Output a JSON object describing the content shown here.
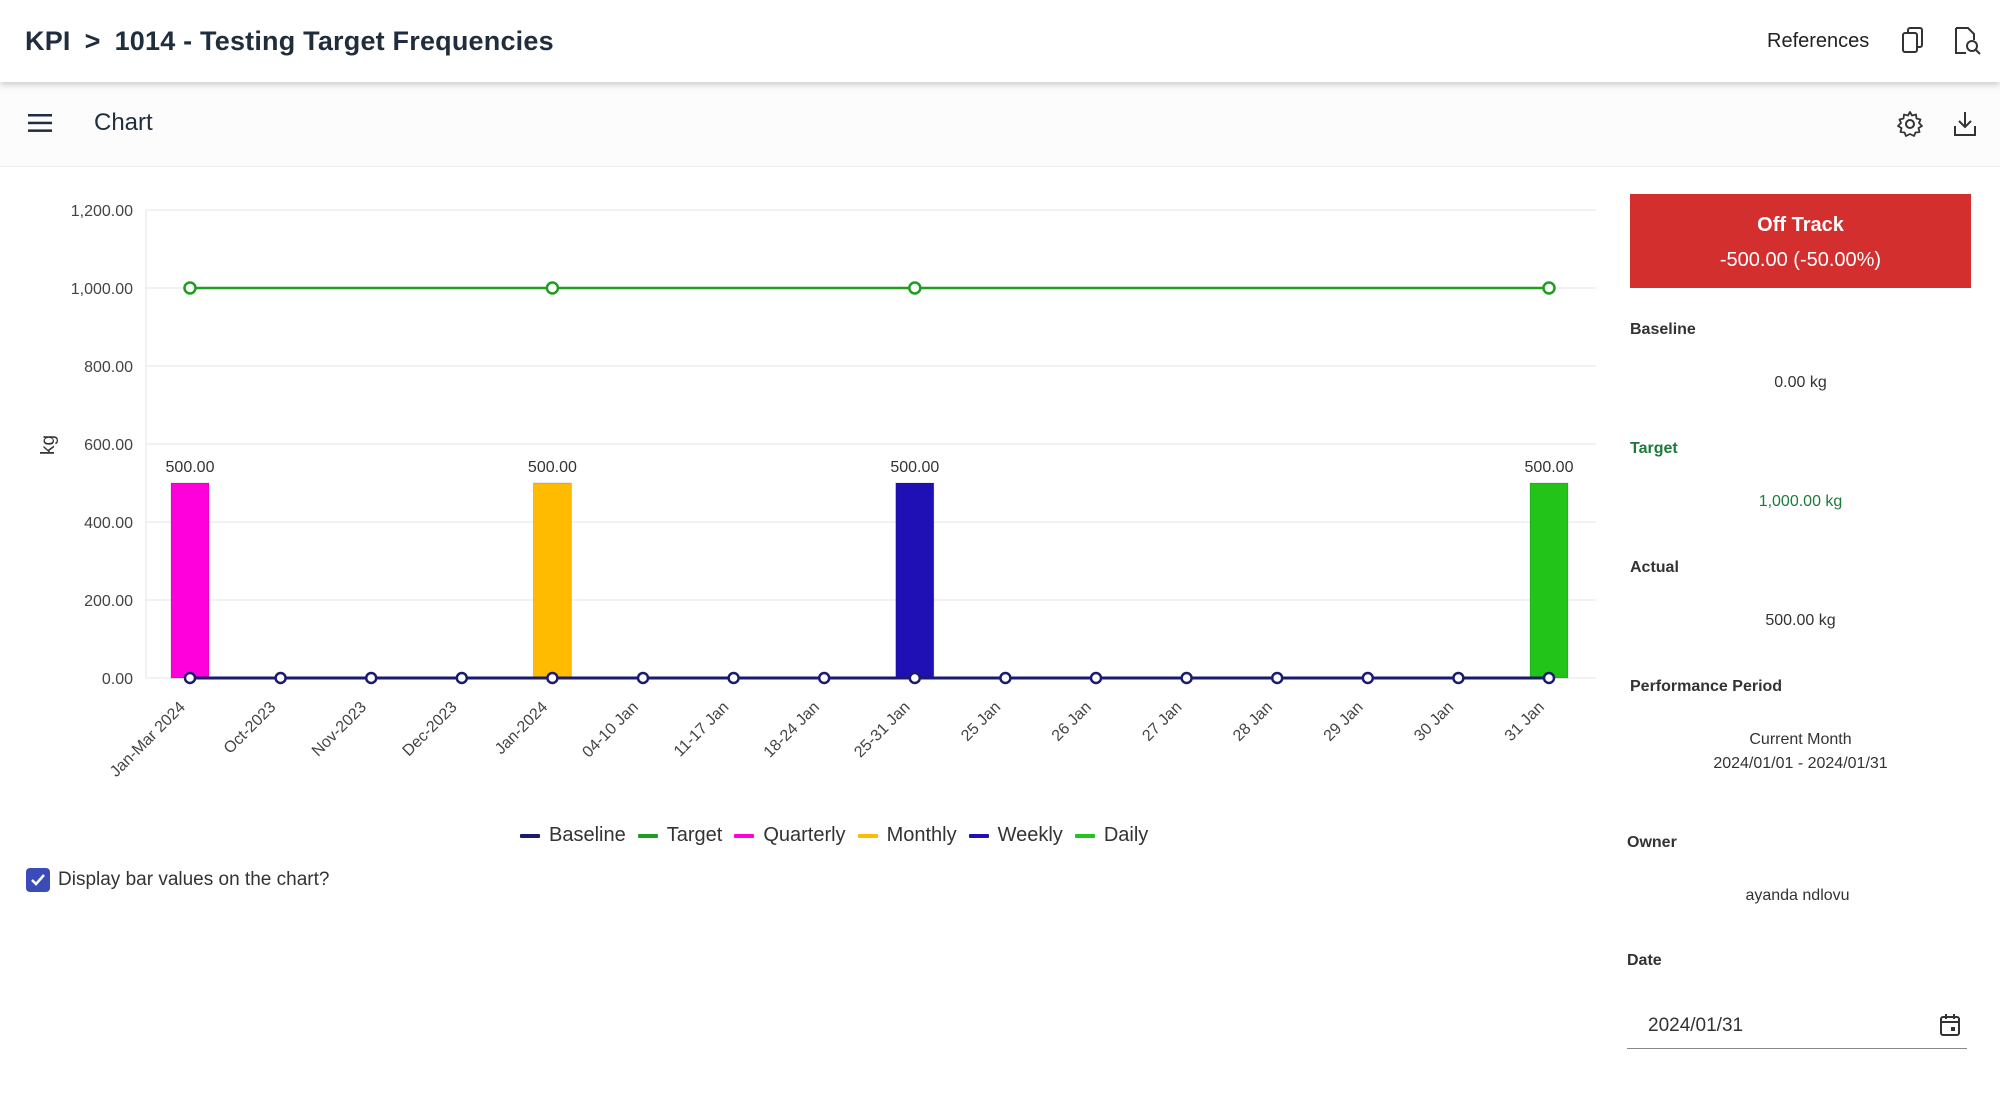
{
  "header": {
    "breadcrumb_root": "KPI",
    "breadcrumb_sep": ">",
    "breadcrumb_title": "1014 - Testing Target Frequencies",
    "references_label": "References",
    "copy_icon": "copy-icon",
    "preview_icon": "document-search-icon"
  },
  "subheader": {
    "menu_icon": "hamburger-menu-icon",
    "title": "Chart",
    "settings_icon": "gear-icon",
    "download_icon": "download-icon"
  },
  "chart_data": {
    "type": "bar",
    "categories": [
      "Jan-Mar 2024",
      "Oct-2023",
      "Nov-2023",
      "Dec-2023",
      "Jan-2024",
      "04-10 Jan",
      "11-17 Jan",
      "18-24 Jan",
      "25-31 Jan",
      "25 Jan",
      "26 Jan",
      "27 Jan",
      "28 Jan",
      "29 Jan",
      "30 Jan",
      "31 Jan"
    ],
    "ylabel": "kg",
    "ylim": [
      0,
      1200
    ],
    "yticks": [
      "0.00",
      "200.00",
      "400.00",
      "600.00",
      "800.00",
      "1,000.00",
      "1,200.00"
    ],
    "grid": true,
    "bars": [
      {
        "series": "Quarterly",
        "category_index": 0,
        "value": 500,
        "label": "500.00"
      },
      {
        "series": "Monthly",
        "category_index": 4,
        "value": 500,
        "label": "500.00"
      },
      {
        "series": "Weekly",
        "category_index": 8,
        "value": 500,
        "label": "500.00"
      },
      {
        "series": "Daily",
        "category_index": 15,
        "value": 500,
        "label": "500.00"
      }
    ],
    "lines": [
      {
        "name": "Baseline",
        "values": [
          0,
          0,
          0,
          0,
          0,
          0,
          0,
          0,
          0,
          0,
          0,
          0,
          0,
          0,
          0,
          0
        ]
      },
      {
        "name": "Target",
        "points": [
          [
            0,
            1000
          ],
          [
            4,
            1000
          ],
          [
            8,
            1000
          ],
          [
            15,
            1000
          ]
        ]
      }
    ],
    "series": [
      {
        "name": "Baseline",
        "color": "#1a1a6e"
      },
      {
        "name": "Target",
        "color": "#1e9e1e"
      },
      {
        "name": "Quarterly",
        "color": "#ff00dd"
      },
      {
        "name": "Monthly",
        "color": "#ffbb00"
      },
      {
        "name": "Weekly",
        "color": "#1f10b5"
      },
      {
        "name": "Daily",
        "color": "#22c41a"
      }
    ],
    "legend_position": "bottom-center"
  },
  "options": {
    "display_bar_values_label": "Display bar values on the chart?",
    "display_bar_values_checked": true
  },
  "summary": {
    "status": "Off Track",
    "difference": "-500.00 (-50.00%)",
    "status_color": "#d32f2f",
    "baseline_label": "Baseline",
    "baseline_value": "0.00 kg",
    "target_label": "Target",
    "target_value": "1,000.00 kg",
    "actual_label": "Actual",
    "actual_value": "500.00 kg",
    "period_label": "Performance Period",
    "period_name": "Current Month",
    "period_range": "2024/01/01 - 2024/01/31",
    "owner_label": "Owner",
    "owner_value": "ayanda ndlovu",
    "date_label": "Date",
    "date_value": "2024/01/31",
    "calendar_icon": "calendar-icon"
  }
}
